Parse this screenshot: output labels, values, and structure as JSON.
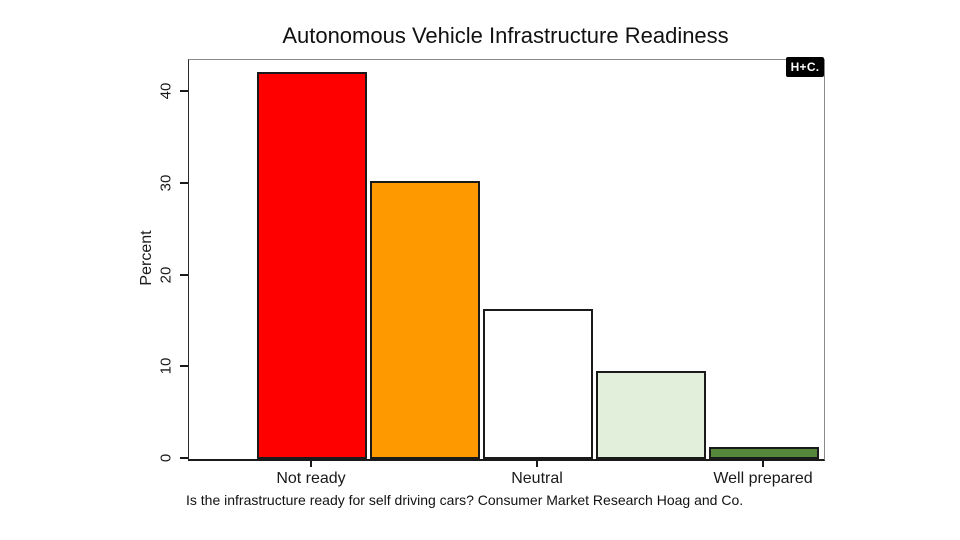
{
  "page": {
    "background": "#ffffff"
  },
  "brand_badge": {
    "label": "H+C.",
    "bg": "#000000",
    "fg": "#ffffff"
  },
  "chart_data": {
    "type": "bar",
    "title": "Autonomous Vehicle Infrastructure Readiness",
    "ylabel": "Percent",
    "xlabel": "",
    "caption": "Is the infrastructure ready for self driving cars? Consumer Market Research Hoag and Co.",
    "categories": [
      "Not ready",
      "",
      "Neutral",
      "",
      "Well prepared"
    ],
    "values": [
      42.2,
      30.3,
      16.3,
      9.6,
      1.3
    ],
    "bar_colors": [
      "#ff0000",
      "#ff9900",
      "#ffffff",
      "#e2efda",
      "#55883b"
    ],
    "bar_border_color": "#1a1a1a",
    "ylim": [
      0,
      43.5
    ],
    "yticks": [
      "0",
      "10",
      "20",
      "30",
      "40"
    ],
    "x_tick_bar_indices": [
      0,
      2,
      4
    ],
    "grid": false,
    "legend": null
  }
}
